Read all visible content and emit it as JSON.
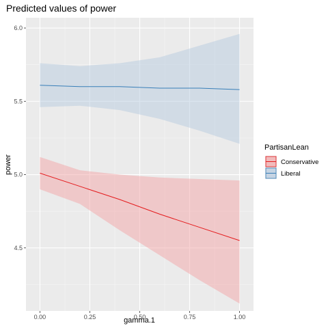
{
  "chart_data": {
    "type": "line",
    "title": "Predicted values of power",
    "xlabel": "gamma.1",
    "ylabel": "power",
    "xlim": [
      -0.07,
      1.07
    ],
    "ylim": [
      4.07,
      6.07
    ],
    "x_ticks": [
      0.0,
      0.25,
      0.5,
      0.75,
      1.0
    ],
    "x_tick_labels": [
      "0.00",
      "0.25",
      "0.50",
      "0.75",
      "1.00"
    ],
    "y_ticks": [
      4.5,
      5.0,
      5.5,
      6.0
    ],
    "y_tick_labels": [
      "4.5",
      "5.0",
      "5.5",
      "6.0"
    ],
    "grid": true,
    "panel_background": "#ebebeb",
    "legend": {
      "title": "PartisanLean",
      "position": "right"
    },
    "series": [
      {
        "name": "Conservative",
        "color": "#e41a1c",
        "fill": "#f4a6a8",
        "x": [
          0.0,
          0.2,
          0.4,
          0.6,
          0.8,
          1.0
        ],
        "y": [
          5.01,
          4.92,
          4.83,
          4.73,
          4.64,
          4.55
        ],
        "lower": [
          4.9,
          4.8,
          4.62,
          4.45,
          4.28,
          4.12
        ],
        "upper": [
          5.12,
          5.03,
          5.0,
          4.98,
          4.97,
          4.96
        ]
      },
      {
        "name": "Liberal",
        "color": "#377eb8",
        "fill": "#b7cbe0",
        "x": [
          0.0,
          0.2,
          0.4,
          0.6,
          0.8,
          1.0
        ],
        "y": [
          5.61,
          5.6,
          5.6,
          5.59,
          5.59,
          5.58
        ],
        "lower": [
          5.46,
          5.47,
          5.44,
          5.38,
          5.3,
          5.21
        ],
        "upper": [
          5.76,
          5.74,
          5.76,
          5.8,
          5.88,
          5.96
        ]
      }
    ]
  }
}
